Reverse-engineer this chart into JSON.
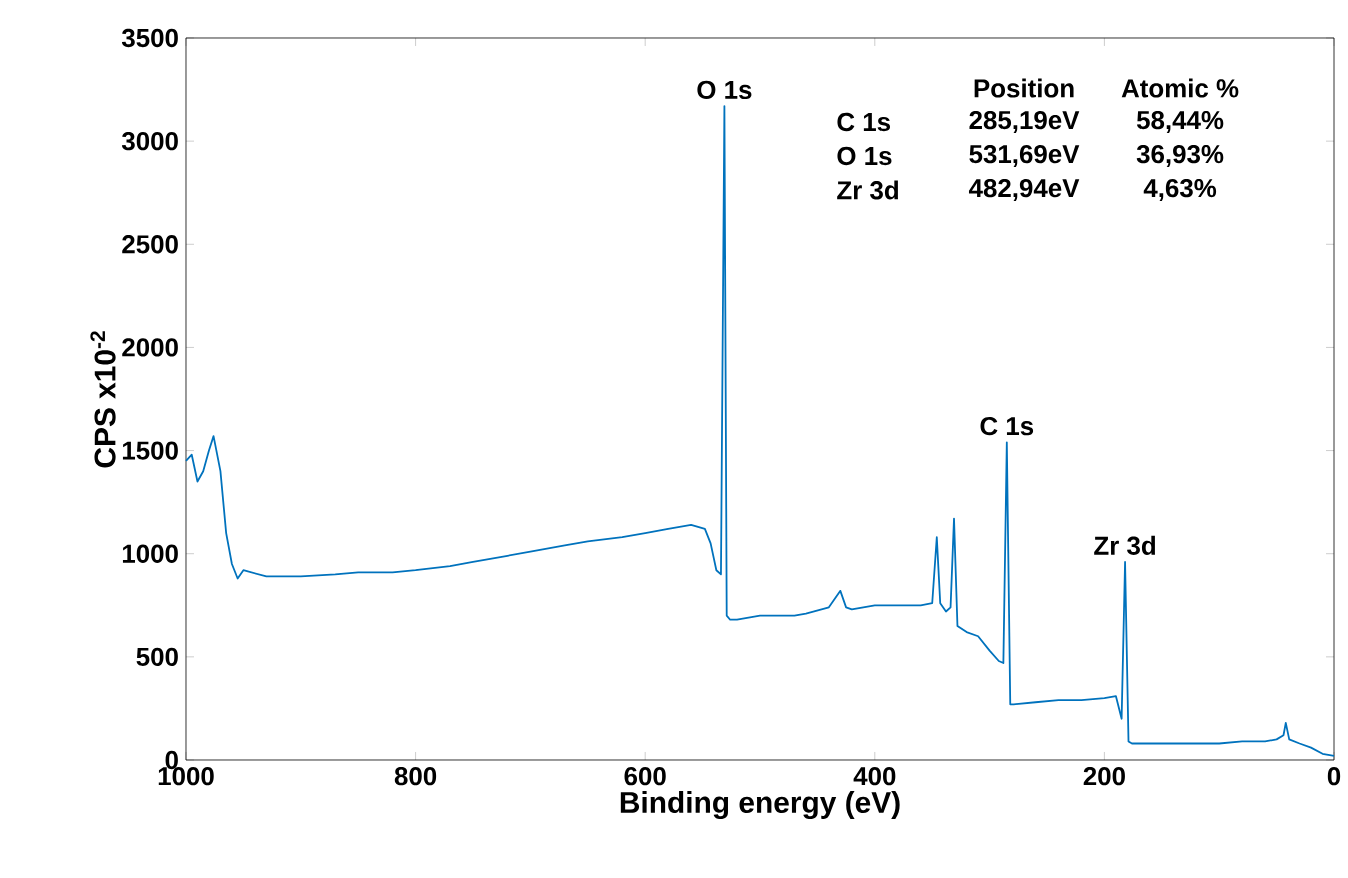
{
  "chart_data": {
    "type": "line",
    "xlabel": "Binding energy (eV)",
    "ylabel": "CPS x10$^{-2}$",
    "xlim": [
      1000,
      0
    ],
    "ylim": [
      0,
      3500
    ],
    "xticks": [
      1000,
      800,
      600,
      400,
      200,
      0
    ],
    "yticks": [
      0,
      500,
      1000,
      1500,
      2000,
      2500,
      3000,
      3500
    ],
    "grid": false,
    "legend": false,
    "marker": "none",
    "line_style": "solid",
    "series": [
      {
        "color": "#0072bd",
        "x": [
          1000,
          995,
          990,
          985,
          980,
          976,
          970,
          965,
          960,
          955,
          950,
          930,
          900,
          870,
          850,
          820,
          800,
          770,
          750,
          720,
          700,
          670,
          650,
          620,
          600,
          580,
          560,
          548,
          543,
          538,
          534,
          531,
          529,
          526,
          520,
          500,
          470,
          460,
          440,
          430,
          425,
          420,
          400,
          380,
          360,
          350,
          346,
          343,
          338,
          334,
          331,
          328,
          320,
          310,
          300,
          292,
          288,
          285,
          282,
          279,
          260,
          240,
          220,
          200,
          190,
          185,
          182,
          179,
          176,
          150,
          120,
          100,
          80,
          60,
          50,
          44,
          42,
          39,
          30,
          20,
          10,
          0
        ],
        "values": [
          1450,
          1480,
          1350,
          1400,
          1500,
          1570,
          1400,
          1100,
          950,
          880,
          920,
          890,
          890,
          900,
          910,
          910,
          920,
          940,
          960,
          990,
          1010,
          1040,
          1060,
          1080,
          1100,
          1120,
          1140,
          1120,
          1050,
          920,
          900,
          3170,
          700,
          680,
          680,
          700,
          700,
          710,
          740,
          820,
          740,
          730,
          750,
          750,
          750,
          760,
          1080,
          760,
          720,
          740,
          1170,
          650,
          620,
          600,
          530,
          480,
          470,
          1540,
          270,
          270,
          280,
          290,
          290,
          300,
          310,
          200,
          960,
          90,
          80,
          80,
          80,
          80,
          90,
          90,
          100,
          120,
          180,
          100,
          80,
          60,
          30,
          20
        ]
      }
    ],
    "annotations": [
      {
        "text": "O 1s",
        "x": 531,
        "y": 3170
      },
      {
        "text": "C 1s",
        "x": 285,
        "y": 1540
      },
      {
        "text": "Zr 3d",
        "x": 182,
        "y": 960
      },
      "Position",
      "Atomic %",
      "C  1s",
      "285,19eV",
      "58,44%",
      "O  1s",
      "531,69eV",
      "36,93%",
      "Zr 3d",
      "482,94eV",
      "4,63%"
    ]
  }
}
